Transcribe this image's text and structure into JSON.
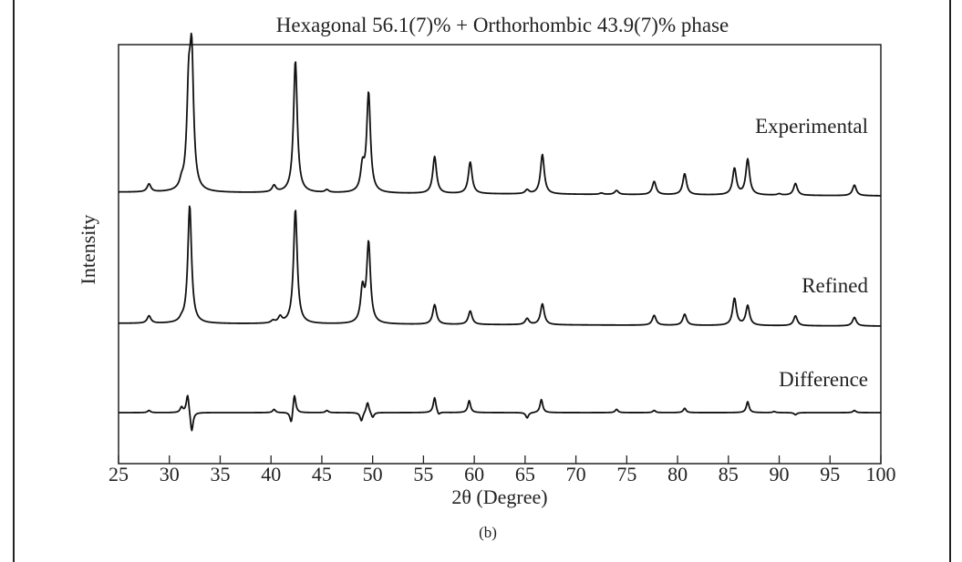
{
  "chart_data": {
    "type": "line",
    "title": "Hexagonal 56.1(7)% + Orthorhombic 43.9(7)% phase",
    "xlabel": "2θ (Degree)",
    "ylabel": "Intensity",
    "panel_label": "(b)",
    "xlim": [
      25,
      100
    ],
    "xticks": [
      25,
      30,
      35,
      40,
      45,
      50,
      55,
      60,
      65,
      70,
      75,
      80,
      85,
      90,
      95,
      100
    ],
    "grid": false,
    "legend": "none",
    "series": [
      {
        "name": "Experimental",
        "peaks": [
          {
            "x": 28.0,
            "h": 0.06
          },
          {
            "x": 31.2,
            "h": 0.05
          },
          {
            "x": 31.9,
            "h": 0.68
          },
          {
            "x": 32.2,
            "h": 0.95
          },
          {
            "x": 40.3,
            "h": 0.05
          },
          {
            "x": 42.4,
            "h": 1.0
          },
          {
            "x": 45.5,
            "h": 0.02
          },
          {
            "x": 49.0,
            "h": 0.18
          },
          {
            "x": 49.6,
            "h": 0.75
          },
          {
            "x": 56.1,
            "h": 0.28
          },
          {
            "x": 59.6,
            "h": 0.24
          },
          {
            "x": 65.2,
            "h": 0.03
          },
          {
            "x": 66.7,
            "h": 0.3
          },
          {
            "x": 72.5,
            "h": 0.01
          },
          {
            "x": 74.0,
            "h": 0.03
          },
          {
            "x": 77.7,
            "h": 0.1
          },
          {
            "x": 80.7,
            "h": 0.16
          },
          {
            "x": 85.6,
            "h": 0.2
          },
          {
            "x": 86.9,
            "h": 0.27
          },
          {
            "x": 90.0,
            "h": 0.01
          },
          {
            "x": 91.6,
            "h": 0.09
          },
          {
            "x": 97.4,
            "h": 0.08
          }
        ]
      },
      {
        "name": "Refined",
        "peaks": [
          {
            "x": 28.0,
            "h": 0.06
          },
          {
            "x": 31.2,
            "h": 0.02
          },
          {
            "x": 32.0,
            "h": 0.96
          },
          {
            "x": 40.2,
            "h": 0.02
          },
          {
            "x": 40.9,
            "h": 0.05
          },
          {
            "x": 42.4,
            "h": 0.93
          },
          {
            "x": 49.0,
            "h": 0.27
          },
          {
            "x": 49.6,
            "h": 0.65
          },
          {
            "x": 56.1,
            "h": 0.16
          },
          {
            "x": 59.6,
            "h": 0.11
          },
          {
            "x": 65.2,
            "h": 0.05
          },
          {
            "x": 66.7,
            "h": 0.17
          },
          {
            "x": 77.7,
            "h": 0.08
          },
          {
            "x": 80.7,
            "h": 0.09
          },
          {
            "x": 85.6,
            "h": 0.22
          },
          {
            "x": 86.9,
            "h": 0.16
          },
          {
            "x": 91.6,
            "h": 0.08
          },
          {
            "x": 97.4,
            "h": 0.07
          }
        ]
      },
      {
        "name": "Difference",
        "peaks": [
          {
            "x": 28.0,
            "h": 0.02
          },
          {
            "x": 31.2,
            "h": 0.05
          },
          {
            "x": 31.8,
            "h": 0.18
          },
          {
            "x": 32.2,
            "h": -0.19
          },
          {
            "x": 40.3,
            "h": 0.03
          },
          {
            "x": 42.3,
            "h": 0.18
          },
          {
            "x": 42.0,
            "h": -0.12
          },
          {
            "x": 45.5,
            "h": 0.02
          },
          {
            "x": 48.9,
            "h": -0.08
          },
          {
            "x": 49.5,
            "h": 0.1
          },
          {
            "x": 50.0,
            "h": -0.05
          },
          {
            "x": 56.1,
            "h": 0.14
          },
          {
            "x": 56.5,
            "h": -0.03
          },
          {
            "x": 59.5,
            "h": 0.11
          },
          {
            "x": 65.2,
            "h": -0.05
          },
          {
            "x": 66.6,
            "h": 0.12
          },
          {
            "x": 74.0,
            "h": 0.03
          },
          {
            "x": 77.7,
            "h": 0.02
          },
          {
            "x": 80.7,
            "h": 0.04
          },
          {
            "x": 86.9,
            "h": 0.1
          },
          {
            "x": 89.5,
            "h": 0.01
          },
          {
            "x": 91.6,
            "h": -0.02
          },
          {
            "x": 97.4,
            "h": 0.02
          }
        ]
      }
    ]
  }
}
